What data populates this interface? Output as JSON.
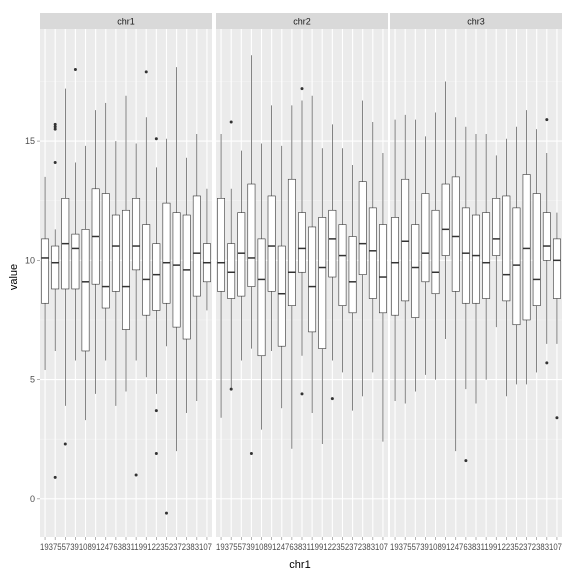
{
  "chart_data": {
    "type": "boxplot",
    "xlabel": "chr1",
    "ylabel": "value",
    "ylim": [
      -1.6,
      19.7
    ],
    "y_ticks": [
      0,
      5,
      10,
      15
    ],
    "grid": true,
    "colors": {
      "panel_bg": "#ebebeb",
      "strip_bg": "#d9d9d9",
      "grid_major": "#ffffff",
      "box_fill": "#ffffff",
      "box_line": "#333333",
      "tick_text": "#4d4d4d"
    },
    "tick_label_text": "1937557391089124763831199122352372383107",
    "panels": [
      {
        "label": "chr1",
        "boxes": [
          {
            "q1": 8.2,
            "median": 10.1,
            "q3": 10.9,
            "lo": 5.4,
            "hi": 13.5,
            "outliers": []
          },
          {
            "q1": 8.8,
            "median": 9.9,
            "q3": 10.6,
            "lo": 6.2,
            "hi": 11.3,
            "outliers": [
              0.9,
              14.1,
              15.5,
              15.6,
              15.7
            ]
          },
          {
            "q1": 8.8,
            "median": 10.7,
            "q3": 12.6,
            "lo": 3.9,
            "hi": 17.2,
            "outliers": [
              2.3
            ]
          },
          {
            "q1": 8.8,
            "median": 10.5,
            "q3": 11.1,
            "lo": 5.8,
            "hi": 14.1,
            "outliers": [
              18.0
            ]
          },
          {
            "q1": 6.2,
            "median": 9.1,
            "q3": 11.3,
            "lo": 3.3,
            "hi": 14.8,
            "outliers": []
          },
          {
            "q1": 9.0,
            "median": 11.0,
            "q3": 13.0,
            "lo": 4.4,
            "hi": 16.3,
            "outliers": []
          },
          {
            "q1": 8.0,
            "median": 8.9,
            "q3": 12.8,
            "lo": 5.8,
            "hi": 16.6,
            "outliers": []
          },
          {
            "q1": 8.7,
            "median": 10.6,
            "q3": 11.9,
            "lo": 3.9,
            "hi": 15.0,
            "outliers": []
          },
          {
            "q1": 7.1,
            "median": 8.9,
            "q3": 12.1,
            "lo": 4.5,
            "hi": 16.9,
            "outliers": []
          },
          {
            "q1": 9.6,
            "median": 10.6,
            "q3": 12.6,
            "lo": 5.8,
            "hi": 14.9,
            "outliers": [
              1.0
            ]
          },
          {
            "q1": 7.7,
            "median": 9.2,
            "q3": 11.5,
            "lo": 5.1,
            "hi": 16.0,
            "outliers": [
              17.9
            ]
          },
          {
            "q1": 7.9,
            "median": 9.4,
            "q3": 10.7,
            "lo": 4.4,
            "hi": 13.9,
            "outliers": [
              1.9,
              3.7,
              15.1
            ]
          },
          {
            "q1": 8.2,
            "median": 9.9,
            "q3": 12.4,
            "lo": 6.4,
            "hi": 15.1,
            "outliers": [
              -0.6
            ]
          },
          {
            "q1": 7.2,
            "median": 9.8,
            "q3": 12.0,
            "lo": 2.0,
            "hi": 18.1,
            "outliers": []
          },
          {
            "q1": 6.7,
            "median": 9.6,
            "q3": 11.9,
            "lo": 3.6,
            "hi": 14.3,
            "outliers": []
          },
          {
            "q1": 8.5,
            "median": 10.3,
            "q3": 12.7,
            "lo": 4.1,
            "hi": 15.3,
            "outliers": []
          },
          {
            "q1": 9.1,
            "median": 9.9,
            "q3": 10.7,
            "lo": 7.9,
            "hi": 13.0,
            "outliers": []
          }
        ]
      },
      {
        "label": "chr2",
        "boxes": [
          {
            "q1": 8.7,
            "median": 9.9,
            "q3": 12.6,
            "lo": 3.4,
            "hi": 15.3,
            "outliers": []
          },
          {
            "q1": 8.4,
            "median": 9.5,
            "q3": 10.7,
            "lo": 4.6,
            "hi": 13.0,
            "outliers": [
              4.6,
              15.8
            ]
          },
          {
            "q1": 8.5,
            "median": 10.3,
            "q3": 12.0,
            "lo": 5.8,
            "hi": 14.6,
            "outliers": []
          },
          {
            "q1": 8.9,
            "median": 10.1,
            "q3": 13.2,
            "lo": 6.3,
            "hi": 18.6,
            "outliers": [
              1.9
            ]
          },
          {
            "q1": 6.0,
            "median": 9.2,
            "q3": 10.9,
            "lo": 2.9,
            "hi": 14.9,
            "outliers": []
          },
          {
            "q1": 8.7,
            "median": 10.6,
            "q3": 12.7,
            "lo": 6.2,
            "hi": 16.5,
            "outliers": []
          },
          {
            "q1": 6.4,
            "median": 8.6,
            "q3": 10.6,
            "lo": 3.8,
            "hi": 14.8,
            "outliers": []
          },
          {
            "q1": 8.1,
            "median": 9.5,
            "q3": 13.4,
            "lo": 2.1,
            "hi": 16.5,
            "outliers": []
          },
          {
            "q1": 9.5,
            "median": 10.5,
            "q3": 12.0,
            "lo": 6.0,
            "hi": 16.7,
            "outliers": [
              4.4,
              17.2
            ]
          },
          {
            "q1": 7.0,
            "median": 8.9,
            "q3": 11.4,
            "lo": 3.6,
            "hi": 16.9,
            "outliers": []
          },
          {
            "q1": 6.3,
            "median": 9.7,
            "q3": 11.8,
            "lo": 2.3,
            "hi": 14.7,
            "outliers": []
          },
          {
            "q1": 9.3,
            "median": 10.9,
            "q3": 12.1,
            "lo": 5.8,
            "hi": 15.7,
            "outliers": [
              4.2
            ]
          },
          {
            "q1": 8.1,
            "median": 10.2,
            "q3": 11.5,
            "lo": 5.3,
            "hi": 14.7,
            "outliers": []
          },
          {
            "q1": 7.8,
            "median": 9.1,
            "q3": 11.0,
            "lo": 3.7,
            "hi": 14.0,
            "outliers": []
          },
          {
            "q1": 9.4,
            "median": 10.7,
            "q3": 13.3,
            "lo": 4.3,
            "hi": 16.7,
            "outliers": []
          },
          {
            "q1": 8.4,
            "median": 10.4,
            "q3": 12.2,
            "lo": 5.3,
            "hi": 15.8,
            "outliers": []
          },
          {
            "q1": 7.8,
            "median": 9.3,
            "q3": 11.5,
            "lo": 2.4,
            "hi": 14.5,
            "outliers": []
          }
        ]
      },
      {
        "label": "chr3",
        "boxes": [
          {
            "q1": 7.7,
            "median": 9.9,
            "q3": 11.8,
            "lo": 4.1,
            "hi": 15.9,
            "outliers": []
          },
          {
            "q1": 8.3,
            "median": 10.8,
            "q3": 13.4,
            "lo": 4.0,
            "hi": 16.1,
            "outliers": []
          },
          {
            "q1": 7.6,
            "median": 9.7,
            "q3": 11.5,
            "lo": 4.5,
            "hi": 15.9,
            "outliers": []
          },
          {
            "q1": 9.1,
            "median": 10.3,
            "q3": 12.8,
            "lo": 5.2,
            "hi": 15.2,
            "outliers": []
          },
          {
            "q1": 8.6,
            "median": 9.5,
            "q3": 12.1,
            "lo": 5.0,
            "hi": 16.2,
            "outliers": []
          },
          {
            "q1": 10.2,
            "median": 11.3,
            "q3": 13.2,
            "lo": 6.7,
            "hi": 17.5,
            "outliers": []
          },
          {
            "q1": 8.7,
            "median": 11.0,
            "q3": 13.5,
            "lo": 2.0,
            "hi": 16.0,
            "outliers": []
          },
          {
            "q1": 8.2,
            "median": 10.3,
            "q3": 12.2,
            "lo": 4.6,
            "hi": 15.6,
            "outliers": [
              1.6
            ]
          },
          {
            "q1": 8.2,
            "median": 10.2,
            "q3": 11.9,
            "lo": 4.0,
            "hi": 15.3,
            "outliers": []
          },
          {
            "q1": 8.4,
            "median": 9.9,
            "q3": 12.0,
            "lo": 5.0,
            "hi": 15.3,
            "outliers": []
          },
          {
            "q1": 10.2,
            "median": 10.9,
            "q3": 12.6,
            "lo": 7.2,
            "hi": 14.4,
            "outliers": []
          },
          {
            "q1": 8.3,
            "median": 9.4,
            "q3": 12.7,
            "lo": 4.3,
            "hi": 15.1,
            "outliers": []
          },
          {
            "q1": 7.3,
            "median": 9.8,
            "q3": 12.2,
            "lo": 4.8,
            "hi": 15.6,
            "outliers": []
          },
          {
            "q1": 7.5,
            "median": 10.5,
            "q3": 13.6,
            "lo": 4.8,
            "hi": 16.3,
            "outliers": []
          },
          {
            "q1": 8.1,
            "median": 9.2,
            "q3": 12.8,
            "lo": 5.3,
            "hi": 15.5,
            "outliers": []
          },
          {
            "q1": 10.0,
            "median": 10.6,
            "q3": 12.0,
            "lo": 6.5,
            "hi": 14.5,
            "outliers": [
              5.7,
              15.9
            ]
          },
          {
            "q1": 8.4,
            "median": 10.0,
            "q3": 10.9,
            "lo": 6.5,
            "hi": 12.0,
            "outliers": [
              3.4
            ]
          }
        ]
      }
    ]
  }
}
